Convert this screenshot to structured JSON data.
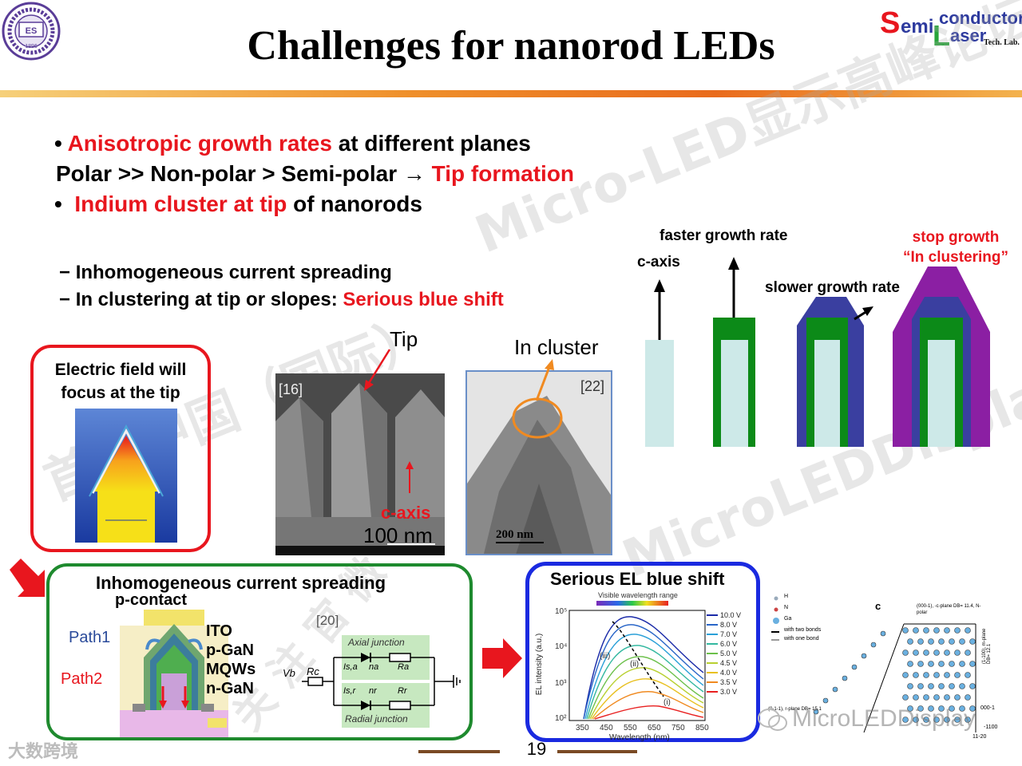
{
  "header": {
    "title": "Challenges for nanorod LEDs",
    "logo_left_text": "ES",
    "logo_left_year": "1896",
    "logo_right": {
      "s": "S",
      "emi": "emi",
      "conductor": "conductor",
      "laser": "aser",
      "l": "L",
      "techlab": "Tech. Lab."
    }
  },
  "bullets": {
    "b1_marker": "•",
    "b1_red": "Anisotropic growth rates",
    "b1_rest": " at different planes",
    "l2_black": "Polar >> Non-polar > Semi-polar ",
    "l2_arrow": "→",
    "l2_red": " Tip formation",
    "b2_marker": "•",
    "b2_red": "Indium cluster at tip",
    "b2_rest": " of nanorods"
  },
  "subbullets": {
    "s1_dash": "−",
    "s1": "Inhomogeneous current spreading",
    "s2_dash": "−",
    "s2_black": "In clustering at tip or slopes: ",
    "s2_red": "Serious blue shift"
  },
  "growth_diagram": {
    "label_faster": "faster growth rate",
    "label_caxis": "c-axis",
    "label_slower": "slower growth rate",
    "label_stop1": "stop growth",
    "label_stop2": "“In clustering”",
    "colors": {
      "core": "#cde9e8",
      "green": "#0c8a18",
      "blue": "#3a3fa0",
      "purple": "#8b1fa3"
    }
  },
  "efield_panel": {
    "line1": "Electric field will",
    "line2": "focus at the tip"
  },
  "sem_panel": {
    "ref": "[16]",
    "tip": "Tip",
    "caxis": "c-axis",
    "scale": "100 nm"
  },
  "tem_panel": {
    "ref": "[22]",
    "label": "In cluster",
    "scale": "200 nm"
  },
  "current_panel": {
    "title": "Inhomogeneous current spreading",
    "pcontact": "p-contact",
    "path1": "Path1",
    "path2": "Path2",
    "layers": [
      "ITO",
      "p-GaN",
      "MQWs",
      "n-GaN"
    ],
    "ref": "[20]",
    "axial": "Axial junction",
    "radial": "Radial junction",
    "vb": "Vb",
    "rc": "Rc",
    "isa": "Is,a",
    "na": "na",
    "ra": "Ra",
    "isr": "Is,r",
    "nr": "nr",
    "rr": "Rr"
  },
  "el_panel": {
    "title": "Serious EL blue shift",
    "visible_range": "Visible wavelength range",
    "ylabel": "EL intensity (a.u.)",
    "xlabel": "Wavelength (nm)",
    "xticks": [
      "350",
      "450",
      "550",
      "650",
      "750",
      "850"
    ],
    "yticks": [
      "10⁵",
      "10⁴",
      "10³",
      "10²"
    ],
    "legend": [
      "10.0 V",
      "8.0 V",
      "7.0 V",
      "6.0 V",
      "5.0 V",
      "4.5 V",
      "4.0 V",
      "3.5 V",
      "3.0 V"
    ],
    "legend_colors": [
      "#1a2aa8",
      "#2a66c8",
      "#2aa0d8",
      "#33b8a0",
      "#6cc04a",
      "#b8d030",
      "#e8c020",
      "#f08a20",
      "#e82020"
    ],
    "labels": [
      "(iii)",
      "(ii)",
      "(i)"
    ]
  },
  "crystal_panel": {
    "letter": "c",
    "legend": [
      "H",
      "N",
      "Ga",
      "with two bonds",
      "with one bond"
    ],
    "plane_c": "(000-1), -c-plane DB= 11.4, N-polar",
    "plane_m": "(1-100), m-plane DB= 12.1",
    "plane_semi": "(0-1-1), r-plane DB= 15.1",
    "axis1": "000-1",
    "axis2": "-1100",
    "axis3": "11-20"
  },
  "footer": {
    "page": "19"
  },
  "watermarks": {
    "w1": "Micro-LED显示高峰论坛",
    "w2": "首届中国（国际）",
    "w3": "MicroLEDDisplay",
    "w4": "关 注 官 微",
    "w5": "MicroLEDDisplay",
    "w6": "大数跨境"
  }
}
